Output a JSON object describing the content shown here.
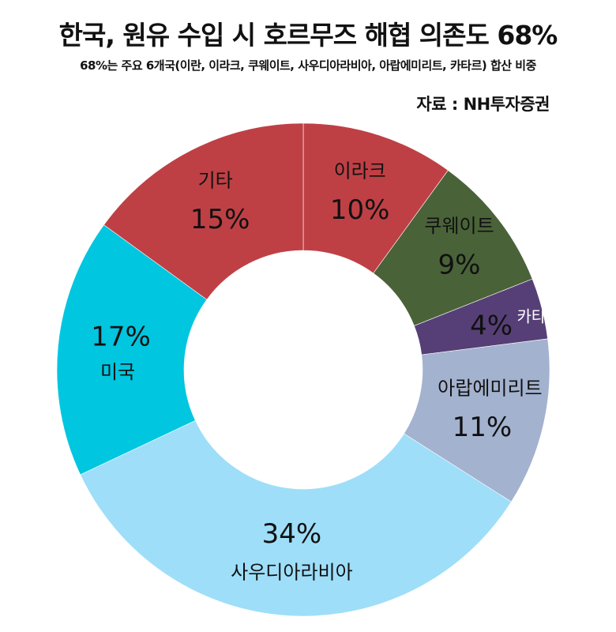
{
  "header": {
    "title": "한국, 원유 수입 시 호르무즈 해협 의존도 68%",
    "subtitle": "68%는 주요 6개국(이란, 이라크, 쿠웨이트, 사우디아라비아, 아랍에미리트, 카타르) 합산 비중",
    "source": "자료 : NH투자증권"
  },
  "chart_data": {
    "type": "pie",
    "variant": "donut",
    "title": "한국, 원유 수입 시 호르무즈 해협 의존도 68%",
    "subtitle": "68%는 주요 6개국(이란, 이라크, 쿠웨이트, 사우디아라비아, 아랍에미리트, 카타르) 합산 비중",
    "unit": "%",
    "slices": [
      {
        "label": "이라크",
        "value": 10,
        "value_label": "10%",
        "color": "#BE4045",
        "label_color": "#111111"
      },
      {
        "label": "쿠웨이트",
        "value": 9,
        "value_label": "9%",
        "color": "#4A6238",
        "label_color": "#111111"
      },
      {
        "label": "카타르",
        "value": 4,
        "value_label": "4%",
        "color": "#563F76",
        "label_color": "#ffffff"
      },
      {
        "label": "아랍에미리트",
        "value": 11,
        "value_label": "11%",
        "color": "#A3B2CE",
        "label_color": "#111111"
      },
      {
        "label": "사우디아라비아",
        "value": 34,
        "value_label": "34%",
        "color": "#9EDEF8",
        "label_color": "#111111"
      },
      {
        "label": "미국",
        "value": 17,
        "value_label": "17%",
        "color": "#00C6E0",
        "label_color": "#111111"
      },
      {
        "label": "기타",
        "value": 15,
        "value_label": "15%",
        "color": "#BE4045",
        "label_color": "#111111"
      }
    ]
  }
}
